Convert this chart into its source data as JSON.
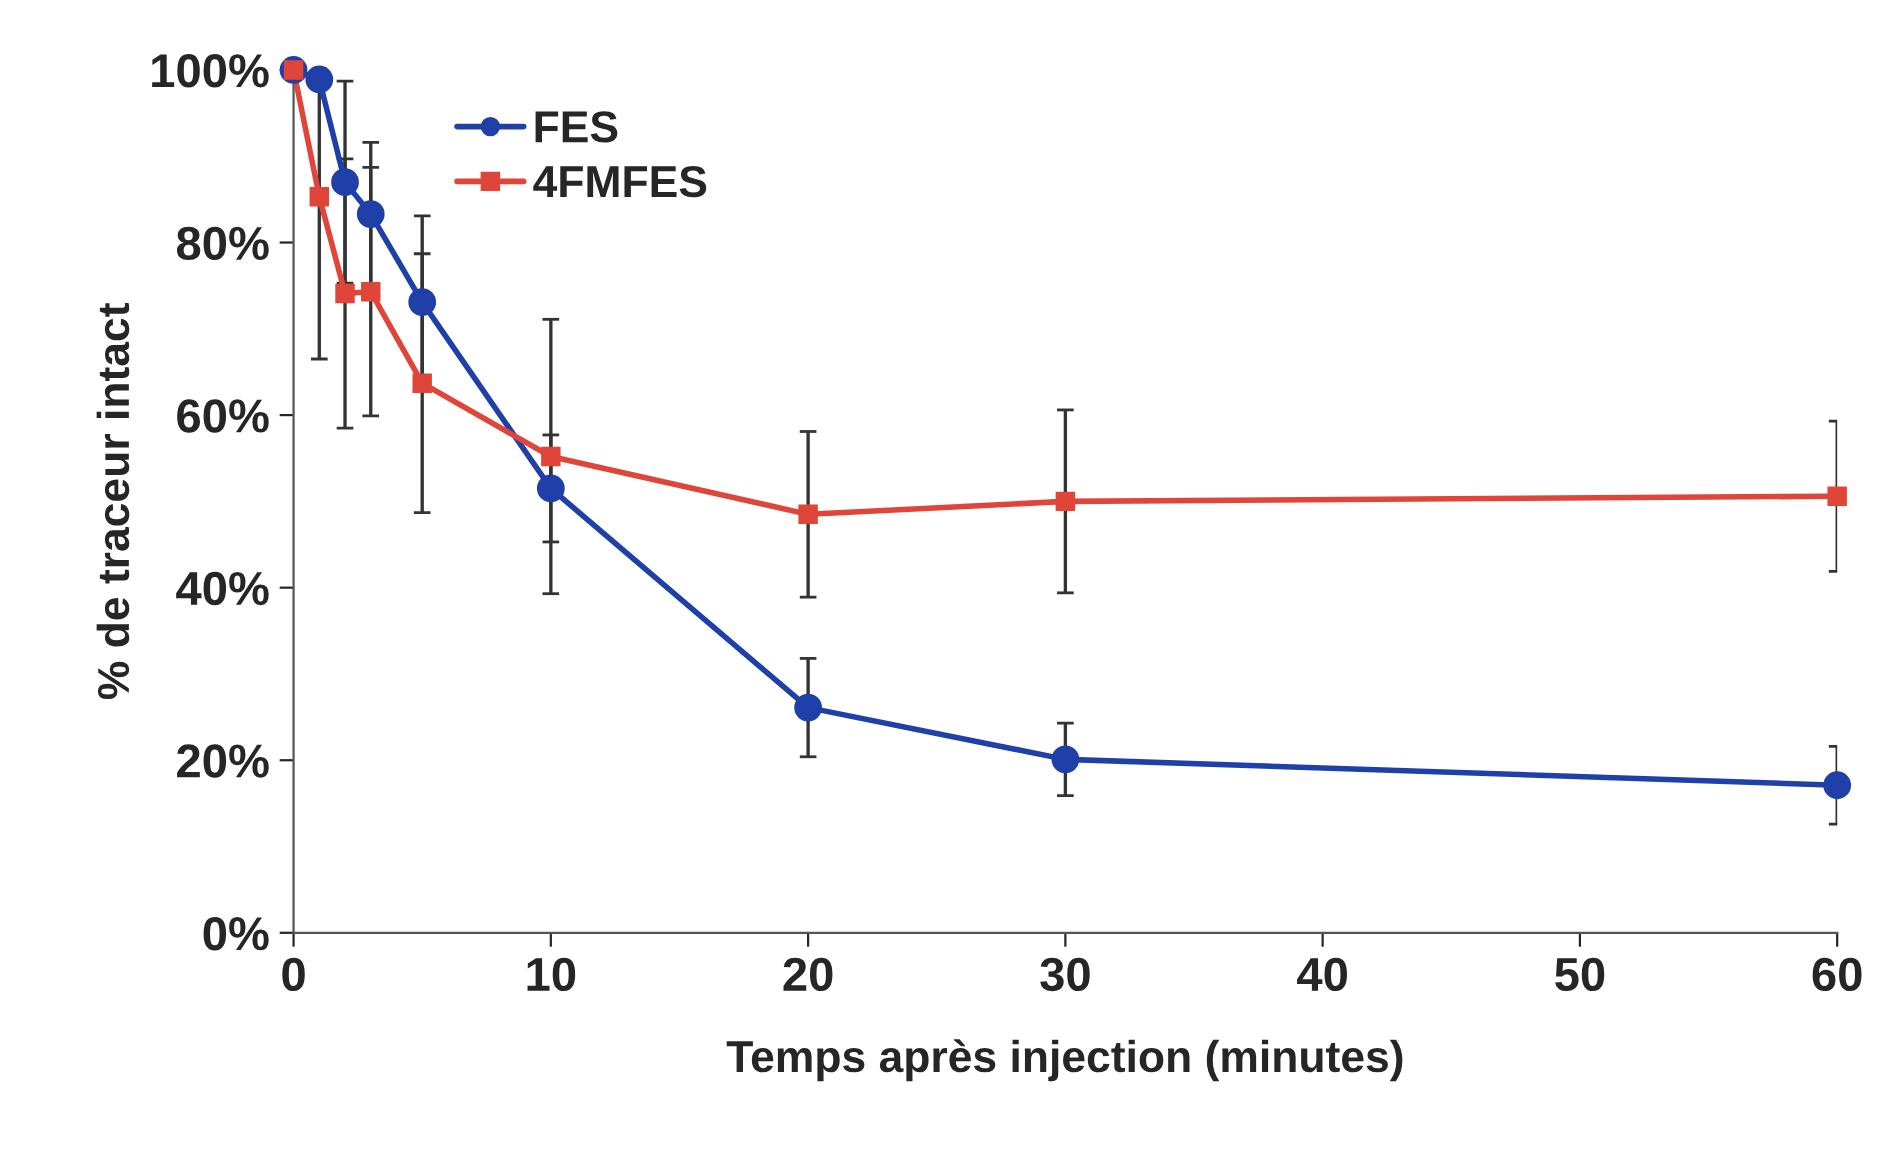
{
  "chart_data": {
    "type": "line",
    "xlabel": "Temps après injection (minutes)",
    "ylabel": "% de traceur intact",
    "x": [
      0,
      1,
      2,
      3,
      5,
      10,
      20,
      30,
      60
    ],
    "series": [
      {
        "name": "FES",
        "color": "#1f40a8",
        "marker": "circle",
        "values": [
          100,
          98.9,
          87.0,
          83.3,
          73.1,
          51.5,
          26.1,
          20.1,
          17.1
        ],
        "errors": [
          null,
          null,
          11.7,
          8.3,
          10,
          6.2,
          5.7,
          4.2,
          4.5
        ]
      },
      {
        "name": "4FMFES",
        "color": "#e0453a",
        "marker": "square",
        "values": [
          100,
          85.3,
          74.1,
          74.3,
          63.7,
          55.2,
          48.5,
          50.0,
          50.6
        ],
        "errors": [
          null,
          18.8,
          15.6,
          14.4,
          15,
          15.9,
          9.6,
          10.6,
          8.7
        ]
      }
    ],
    "xlim": [
      0,
      60
    ],
    "xticks": [
      0,
      10,
      20,
      30,
      40,
      50,
      60
    ],
    "ylim": [
      0,
      100
    ],
    "yticks": [
      {
        "value": 0,
        "label": "0%"
      },
      {
        "value": 20,
        "label": "20%"
      },
      {
        "value": 40,
        "label": "40%"
      },
      {
        "value": 60,
        "label": "60%"
      },
      {
        "value": 80,
        "label": "80%"
      },
      {
        "value": 100,
        "label": "100%"
      }
    ],
    "grid": false,
    "legend": "top left",
    "line_style": "solid"
  }
}
